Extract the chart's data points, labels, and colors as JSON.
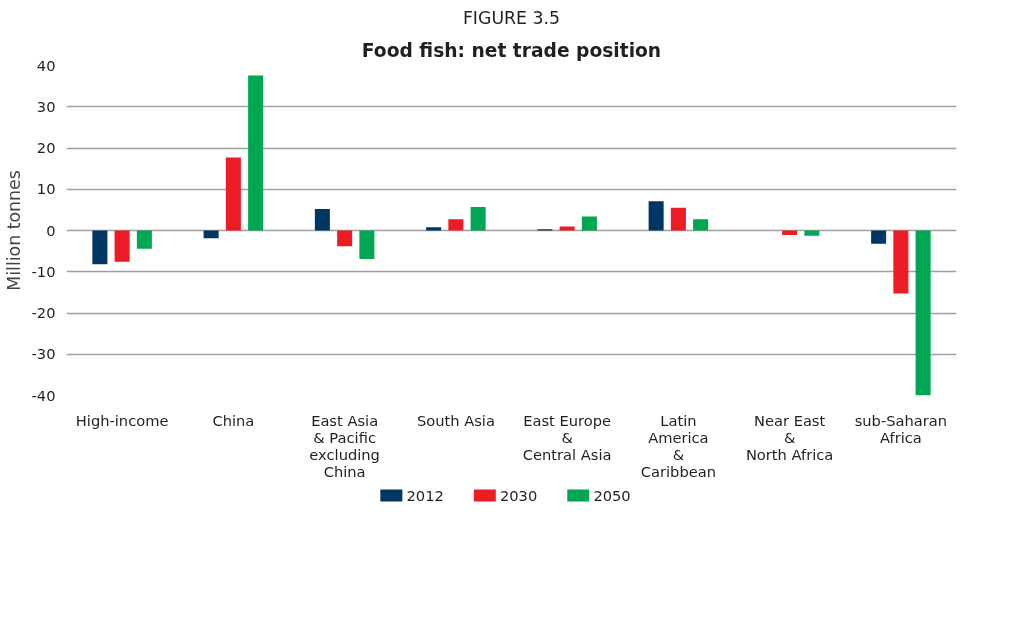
{
  "chart_data": {
    "type": "bar",
    "subtitle": "FIGURE 3.5",
    "title": "Food fish: net trade position",
    "ylabel": "Million tonnes",
    "categories": [
      "High-income",
      "China",
      "East Asia\n& Pacific\nexcluding\nChina",
      "South Asia",
      "East Europe\n&\nCentral Asia",
      "Latin\nAmerica\n&\nCaribbean",
      "Near East\n&\nNorth Africa",
      "sub-Saharan\nAfrica"
    ],
    "series": [
      {
        "name": "2012",
        "color": "#003663",
        "values": [
          -8.2,
          -1.9,
          5.2,
          0.8,
          0.3,
          7.1,
          0,
          -3.2
        ]
      },
      {
        "name": "2030",
        "color": "#ed1c24",
        "values": [
          -7.6,
          17.7,
          -3.8,
          2.7,
          1.0,
          5.5,
          -1.1,
          -15.3
        ]
      },
      {
        "name": "2050",
        "color": "#00a651",
        "values": [
          -4.4,
          37.6,
          -6.9,
          5.7,
          3.4,
          2.7,
          -1.3,
          -40
        ]
      }
    ],
    "ylim": [
      -40,
      40
    ],
    "yticks": [
      -40,
      -30,
      -20,
      -10,
      0,
      10,
      20,
      30,
      40
    ],
    "grid": "y",
    "legend": "bottom"
  }
}
